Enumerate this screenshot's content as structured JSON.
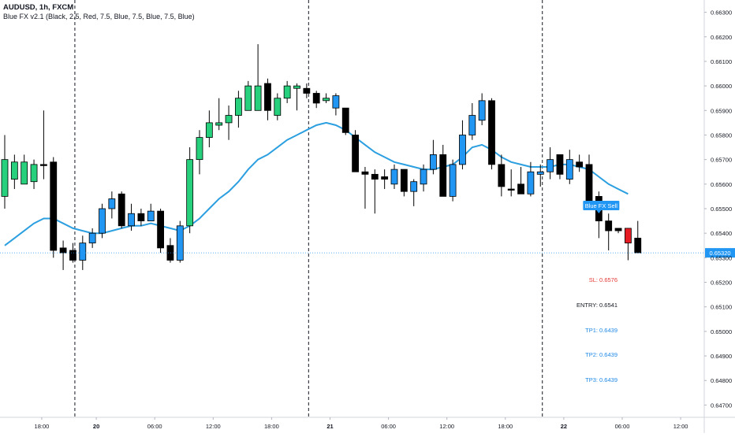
{
  "header": {
    "symbol_line": "AUDUSD, 1h, FXCM",
    "indicator_line": "Blue FX v2.1 (Black, 2.5, Red, 7.5, Blue, 7.5, Blue, 7.5, Blue)"
  },
  "signal_label": "Blue FX Sell",
  "trade_levels": {
    "sl": "SL: 0.6576",
    "entry": "ENTRY: 0.6541",
    "tp1": "TP1: 0.6439",
    "tp2": "TP2: 0.6439",
    "tp3": "TP3: 0.6439"
  },
  "colors": {
    "bull_green": "#26d07c",
    "bull_blue": "#2196f3",
    "bear_black": "#000000",
    "bear_red": "#e51c23",
    "ma_line": "#2c9fe0",
    "price_line": "#2196f3",
    "sl_text": "#e53935",
    "entry_text": "#131722",
    "tp_text": "#1e88e5"
  },
  "chart_data": {
    "type": "candlestick",
    "symbol": "AUDUSD",
    "timeframe": "1h",
    "ylim": [
      0.6465,
      0.6635
    ],
    "y_ticks": [
      "0.66300",
      "0.66200",
      "0.66100",
      "0.66000",
      "0.65900",
      "0.65800",
      "0.65700",
      "0.65600",
      "0.65500",
      "0.65400",
      "0.65300",
      "0.65200",
      "0.65100",
      "0.65000",
      "0.64900",
      "0.64800",
      "0.64700"
    ],
    "x_ticks": [
      {
        "label": "18:00",
        "bar": 3.8,
        "bold": false
      },
      {
        "label": "20",
        "bar": 9.4,
        "bold": true
      },
      {
        "label": "06:00",
        "bar": 15.4,
        "bold": false
      },
      {
        "label": "12:00",
        "bar": 21.4,
        "bold": false
      },
      {
        "label": "18:00",
        "bar": 27.4,
        "bold": false
      },
      {
        "label": "21",
        "bar": 33.4,
        "bold": true
      },
      {
        "label": "06:00",
        "bar": 39.4,
        "bold": false
      },
      {
        "label": "12:00",
        "bar": 45.4,
        "bold": false
      },
      {
        "label": "18:00",
        "bar": 51.4,
        "bold": false
      },
      {
        "label": "22",
        "bar": 57.4,
        "bold": true
      },
      {
        "label": "06:00",
        "bar": 63.4,
        "bold": false
      },
      {
        "label": "12:00",
        "bar": 69.4,
        "bold": false
      }
    ],
    "session_breaks": [
      7.2,
      31.2,
      55.2
    ],
    "last_price": 0.6532,
    "last_price_label": "0.65320",
    "signal_bar": 61,
    "candles": [
      {
        "o": 0.6555,
        "h": 0.658,
        "l": 0.655,
        "c": 0.657,
        "color": "green"
      },
      {
        "o": 0.6562,
        "h": 0.6572,
        "l": 0.6558,
        "c": 0.6569,
        "color": "green"
      },
      {
        "o": 0.6569,
        "h": 0.6572,
        "l": 0.656,
        "c": 0.656,
        "color": "green"
      },
      {
        "o": 0.6561,
        "h": 0.657,
        "l": 0.6558,
        "c": 0.6568,
        "color": "green"
      },
      {
        "o": 0.6568,
        "h": 0.659,
        "l": 0.6562,
        "c": 0.6568,
        "color": "black"
      },
      {
        "o": 0.6569,
        "h": 0.6571,
        "l": 0.653,
        "c": 0.6533,
        "color": "black"
      },
      {
        "o": 0.6534,
        "h": 0.6537,
        "l": 0.6525,
        "c": 0.6532,
        "color": "black"
      },
      {
        "o": 0.6533,
        "h": 0.6536,
        "l": 0.6528,
        "c": 0.6529,
        "color": "black"
      },
      {
        "o": 0.6529,
        "h": 0.6539,
        "l": 0.6525,
        "c": 0.6536,
        "color": "blue"
      },
      {
        "o": 0.6536,
        "h": 0.6542,
        "l": 0.6534,
        "c": 0.654,
        "color": "blue"
      },
      {
        "o": 0.654,
        "h": 0.6552,
        "l": 0.6538,
        "c": 0.655,
        "color": "blue"
      },
      {
        "o": 0.655,
        "h": 0.6557,
        "l": 0.6546,
        "c": 0.6554,
        "color": "blue"
      },
      {
        "o": 0.6556,
        "h": 0.6557,
        "l": 0.6542,
        "c": 0.6543,
        "color": "black"
      },
      {
        "o": 0.6543,
        "h": 0.6552,
        "l": 0.6541,
        "c": 0.6548,
        "color": "blue"
      },
      {
        "o": 0.6548,
        "h": 0.655,
        "l": 0.6543,
        "c": 0.6545,
        "color": "black"
      },
      {
        "o": 0.6545,
        "h": 0.6552,
        "l": 0.6545,
        "c": 0.6549,
        "color": "blue"
      },
      {
        "o": 0.6549,
        "h": 0.655,
        "l": 0.6532,
        "c": 0.6534,
        "color": "black"
      },
      {
        "o": 0.6535,
        "h": 0.6538,
        "l": 0.6528,
        "c": 0.6529,
        "color": "black"
      },
      {
        "o": 0.6529,
        "h": 0.6545,
        "l": 0.6528,
        "c": 0.6543,
        "color": "blue"
      },
      {
        "o": 0.6543,
        "h": 0.6575,
        "l": 0.654,
        "c": 0.657,
        "color": "green"
      },
      {
        "o": 0.657,
        "h": 0.6582,
        "l": 0.6564,
        "c": 0.6579,
        "color": "green"
      },
      {
        "o": 0.6579,
        "h": 0.659,
        "l": 0.6575,
        "c": 0.6585,
        "color": "green"
      },
      {
        "o": 0.6584,
        "h": 0.6595,
        "l": 0.6582,
        "c": 0.6585,
        "color": "green"
      },
      {
        "o": 0.6585,
        "h": 0.6592,
        "l": 0.6578,
        "c": 0.6588,
        "color": "green"
      },
      {
        "o": 0.6588,
        "h": 0.6598,
        "l": 0.6583,
        "c": 0.6595,
        "color": "green"
      },
      {
        "o": 0.659,
        "h": 0.6602,
        "l": 0.659,
        "c": 0.66,
        "color": "green"
      },
      {
        "o": 0.659,
        "h": 0.6617,
        "l": 0.659,
        "c": 0.66,
        "color": "green"
      },
      {
        "o": 0.6601,
        "h": 0.6603,
        "l": 0.6586,
        "c": 0.659,
        "color": "black"
      },
      {
        "o": 0.6588,
        "h": 0.6597,
        "l": 0.6586,
        "c": 0.6595,
        "color": "green"
      },
      {
        "o": 0.6595,
        "h": 0.6602,
        "l": 0.6593,
        "c": 0.66,
        "color": "green"
      },
      {
        "o": 0.66,
        "h": 0.6601,
        "l": 0.659,
        "c": 0.6599,
        "color": "green"
      },
      {
        "o": 0.6599,
        "h": 0.6601,
        "l": 0.6595,
        "c": 0.6597,
        "color": "black"
      },
      {
        "o": 0.6597,
        "h": 0.6598,
        "l": 0.6591,
        "c": 0.6593,
        "color": "black"
      },
      {
        "o": 0.6595,
        "h": 0.6597,
        "l": 0.6593,
        "c": 0.6594,
        "color": "green"
      },
      {
        "o": 0.6596,
        "h": 0.6597,
        "l": 0.6588,
        "c": 0.6591,
        "color": "blue"
      },
      {
        "o": 0.6591,
        "h": 0.6591,
        "l": 0.658,
        "c": 0.6581,
        "color": "black"
      },
      {
        "o": 0.658,
        "h": 0.6582,
        "l": 0.6565,
        "c": 0.6565,
        "color": "black"
      },
      {
        "o": 0.6565,
        "h": 0.6567,
        "l": 0.655,
        "c": 0.6564,
        "color": "black"
      },
      {
        "o": 0.6564,
        "h": 0.6566,
        "l": 0.6548,
        "c": 0.6562,
        "color": "black"
      },
      {
        "o": 0.6563,
        "h": 0.6566,
        "l": 0.6558,
        "c": 0.6562,
        "color": "black"
      },
      {
        "o": 0.656,
        "h": 0.6568,
        "l": 0.6558,
        "c": 0.6566,
        "color": "blue"
      },
      {
        "o": 0.6566,
        "h": 0.6566,
        "l": 0.6555,
        "c": 0.6557,
        "color": "black"
      },
      {
        "o": 0.6557,
        "h": 0.6562,
        "l": 0.6551,
        "c": 0.6561,
        "color": "blue"
      },
      {
        "o": 0.656,
        "h": 0.6568,
        "l": 0.6557,
        "c": 0.6566,
        "color": "blue"
      },
      {
        "o": 0.6566,
        "h": 0.6578,
        "l": 0.6564,
        "c": 0.6572,
        "color": "blue"
      },
      {
        "o": 0.6572,
        "h": 0.6576,
        "l": 0.6555,
        "c": 0.6555,
        "color": "black"
      },
      {
        "o": 0.6555,
        "h": 0.657,
        "l": 0.6553,
        "c": 0.6568,
        "color": "blue"
      },
      {
        "o": 0.6568,
        "h": 0.6586,
        "l": 0.6566,
        "c": 0.658,
        "color": "blue"
      },
      {
        "o": 0.658,
        "h": 0.6593,
        "l": 0.6578,
        "c": 0.6588,
        "color": "blue"
      },
      {
        "o": 0.6586,
        "h": 0.6597,
        "l": 0.6584,
        "c": 0.6594,
        "color": "blue"
      },
      {
        "o": 0.6594,
        "h": 0.6595,
        "l": 0.6566,
        "c": 0.6568,
        "color": "black"
      },
      {
        "o": 0.6568,
        "h": 0.6572,
        "l": 0.6555,
        "c": 0.6559,
        "color": "black"
      },
      {
        "o": 0.6558,
        "h": 0.6566,
        "l": 0.6555,
        "c": 0.6558,
        "color": "black"
      },
      {
        "o": 0.656,
        "h": 0.6567,
        "l": 0.6556,
        "c": 0.6556,
        "color": "black"
      },
      {
        "o": 0.6556,
        "h": 0.6569,
        "l": 0.6555,
        "c": 0.6565,
        "color": "blue"
      },
      {
        "o": 0.6564,
        "h": 0.6568,
        "l": 0.6559,
        "c": 0.6565,
        "color": "blue"
      },
      {
        "o": 0.6565,
        "h": 0.6575,
        "l": 0.6562,
        "c": 0.657,
        "color": "blue"
      },
      {
        "o": 0.6572,
        "h": 0.6572,
        "l": 0.6562,
        "c": 0.6564,
        "color": "black"
      },
      {
        "o": 0.6562,
        "h": 0.6574,
        "l": 0.656,
        "c": 0.657,
        "color": "blue"
      },
      {
        "o": 0.6569,
        "h": 0.6572,
        "l": 0.6565,
        "c": 0.6567,
        "color": "black"
      },
      {
        "o": 0.6568,
        "h": 0.6572,
        "l": 0.655,
        "c": 0.6552,
        "color": "black"
      },
      {
        "o": 0.6555,
        "h": 0.6557,
        "l": 0.6538,
        "c": 0.6545,
        "color": "black"
      },
      {
        "o": 0.6545,
        "h": 0.6548,
        "l": 0.6533,
        "c": 0.6541,
        "color": "black"
      },
      {
        "o": 0.6542,
        "h": 0.6542,
        "l": 0.654,
        "c": 0.6541,
        "color": "black"
      },
      {
        "o": 0.6542,
        "h": 0.6542,
        "l": 0.6529,
        "c": 0.6536,
        "color": "red"
      },
      {
        "o": 0.6538,
        "h": 0.6545,
        "l": 0.6532,
        "c": 0.6532,
        "color": "black"
      }
    ],
    "ma_series": [
      0.6535,
      0.6538,
      0.6541,
      0.6544,
      0.6546,
      0.6546,
      0.6544,
      0.6542,
      0.6541,
      0.654,
      0.654,
      0.6541,
      0.6542,
      0.6543,
      0.6543,
      0.6544,
      0.6543,
      0.6542,
      0.6541,
      0.6543,
      0.6546,
      0.655,
      0.6554,
      0.6557,
      0.6561,
      0.6566,
      0.657,
      0.6572,
      0.6575,
      0.6578,
      0.658,
      0.6582,
      0.6584,
      0.6585,
      0.6584,
      0.6582,
      0.6579,
      0.6576,
      0.6573,
      0.6571,
      0.6569,
      0.6568,
      0.6567,
      0.6566,
      0.6566,
      0.6567,
      0.6568,
      0.6571,
      0.6575,
      0.6576,
      0.6574,
      0.6571,
      0.6569,
      0.6568,
      0.6567,
      0.6567,
      0.6567,
      0.6568,
      0.6568,
      0.6567,
      0.6566,
      0.6563,
      0.656,
      0.6558,
      0.6556
    ]
  }
}
